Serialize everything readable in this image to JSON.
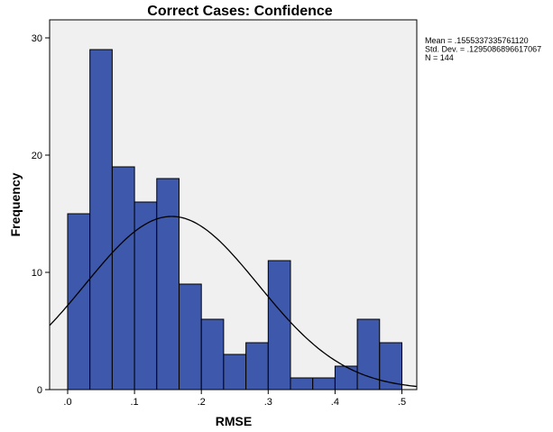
{
  "chart_data": {
    "type": "bar",
    "subtype": "histogram",
    "title": "Correct Cases: Confidence",
    "xlabel": "RMSE",
    "ylabel": "Frequency",
    "xlim": [
      -0.04,
      0.525
    ],
    "ylim": [
      0,
      31
    ],
    "x_ticks": [
      0.0,
      0.1,
      0.2,
      0.3,
      0.4,
      0.5
    ],
    "x_tick_labels": [
      ".0",
      ".1",
      ".2",
      ".3",
      ".4",
      ".5"
    ],
    "y_ticks": [
      0,
      10,
      20,
      30
    ],
    "y_tick_labels": [
      "0",
      "10",
      "20",
      "30"
    ],
    "bin_width": 0.0333,
    "bin_starts": [
      0.0,
      0.0333,
      0.0667,
      0.1,
      0.1333,
      0.1667,
      0.2,
      0.2333,
      0.2667,
      0.3,
      0.3333,
      0.3667,
      0.4,
      0.4333,
      0.4667
    ],
    "values": [
      15,
      29,
      19,
      16,
      18,
      9,
      6,
      3,
      4,
      11,
      1,
      1,
      2,
      6,
      4
    ],
    "bar_color": "#3e58ab",
    "bar_edge_color": "#000000",
    "plot_background": "#f0f0f0",
    "grid": false,
    "normal_curve": {
      "mean": 0.155533733576112,
      "std_dev": 0.1295086896617067,
      "n": 144,
      "color": "#000000"
    },
    "stats_box": {
      "position": "top-right",
      "lines": [
        "Mean = .1555337335761120",
        "Std. Dev. = .1295086896617067",
        "N = 144"
      ]
    }
  }
}
